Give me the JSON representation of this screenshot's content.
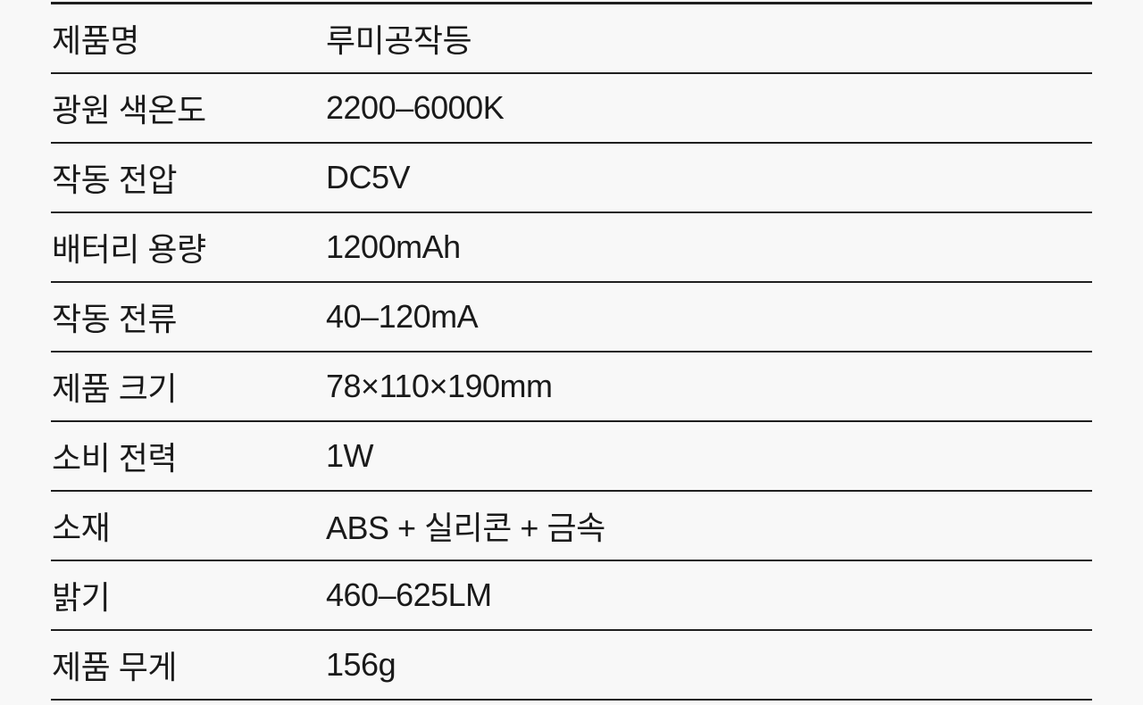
{
  "colors": {
    "background": "#f8f8f8",
    "text": "#1a1a1a",
    "line": "#1f1f1f"
  },
  "spec_table": {
    "rows": [
      {
        "label": "제품명",
        "value": "루미공작등"
      },
      {
        "label": "광원 색온도",
        "value": "2200–6000K"
      },
      {
        "label": "작동 전압",
        "value": "DC5V"
      },
      {
        "label": "배터리 용량",
        "value": "1200mAh"
      },
      {
        "label": "작동 전류",
        "value": "40–120mA"
      },
      {
        "label": "제품 크기",
        "value": "78×110×190mm"
      },
      {
        "label": "소비 전력",
        "value": "1W"
      },
      {
        "label": "소재",
        "value": "ABS + 실리콘 + 금속"
      },
      {
        "label": "밝기",
        "value": "460–625LM"
      },
      {
        "label": "제품 무게",
        "value": "156g"
      }
    ]
  }
}
